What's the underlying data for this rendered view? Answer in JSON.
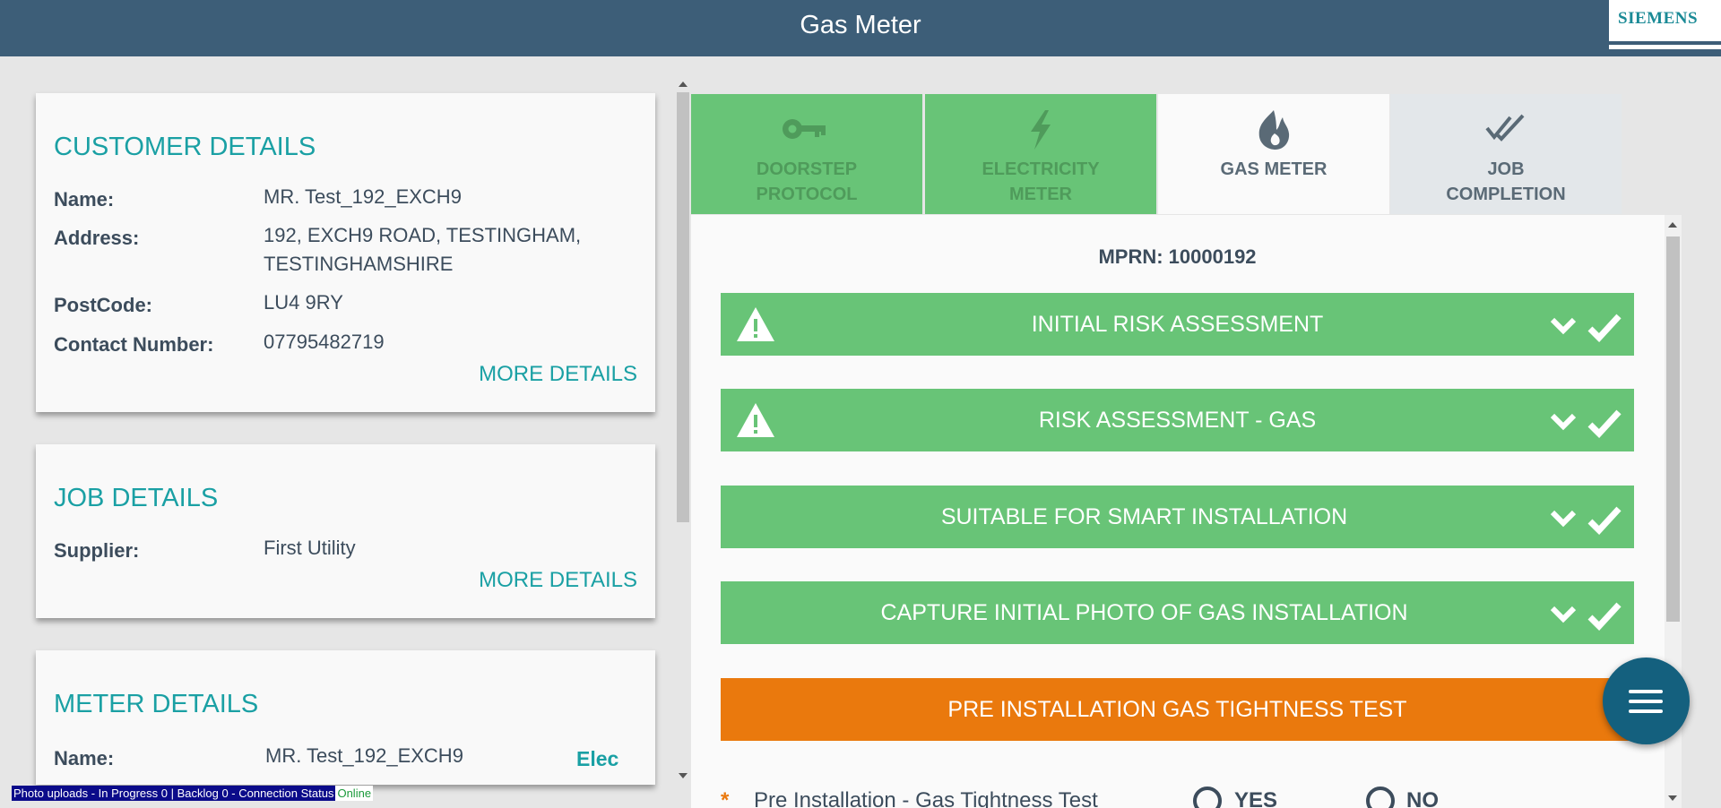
{
  "header": {
    "title": "Gas Meter",
    "logo": "SIEMENS"
  },
  "customer": {
    "title": "CUSTOMER DETAILS",
    "rows": [
      {
        "label": "Name:",
        "value": "MR. Test_192_EXCH9"
      },
      {
        "label": "Address:",
        "value": "192, EXCH9 ROAD, TESTINGHAM, TESTINGHAMSHIRE"
      },
      {
        "label": "PostCode:",
        "value": "LU4 9RY"
      },
      {
        "label": "Contact Number:",
        "value": "07795482719"
      }
    ],
    "more": "MORE DETAILS"
  },
  "job": {
    "title": "JOB DETAILS",
    "rows": [
      {
        "label": "Supplier:",
        "value": "First Utility"
      }
    ],
    "more": "MORE DETAILS"
  },
  "meter": {
    "title": "METER DETAILS",
    "rows": [
      {
        "label": "Name:",
        "value": "MR. Test_192_EXCH9"
      }
    ],
    "tag": "Elec"
  },
  "tabs": [
    {
      "line1": "DOORSTEP",
      "line2": "PROTOCOL",
      "icon": "key-icon",
      "state": "complete"
    },
    {
      "line1": "ELECTRICITY",
      "line2": "METER",
      "icon": "lightning-icon",
      "state": "complete"
    },
    {
      "line1": "GAS METER",
      "line2": "",
      "icon": "flame-icon",
      "state": "active"
    },
    {
      "line1": "JOB",
      "line2": "COMPLETION",
      "icon": "double-check-icon",
      "state": "pending"
    }
  ],
  "mprn": "MPRN: 10000192",
  "sections": [
    {
      "title": "INITIAL RISK ASSESSMENT",
      "status": "complete",
      "warning": true
    },
    {
      "title": "RISK ASSESSMENT - GAS",
      "status": "complete",
      "warning": true
    },
    {
      "title": "SUITABLE FOR SMART INSTALLATION",
      "status": "complete",
      "warning": false
    },
    {
      "title": "CAPTURE INITIAL PHOTO OF GAS INSTALLATION",
      "status": "complete",
      "warning": false
    },
    {
      "title": "PRE INSTALLATION GAS TIGHTNESS TEST",
      "status": "in-progress",
      "warning": false
    }
  ],
  "question": {
    "required_mark": "*",
    "text": "Pre Installation - Gas Tightness Test",
    "options": [
      "YES",
      "NO"
    ]
  },
  "status_bar": {
    "text": "Photo uploads - In Progress 0 | Backlog 0 - Connection Status",
    "connection": "Online"
  },
  "colors": {
    "header": "#3d5e78",
    "complete": "#68c477",
    "in_progress": "#ea790d",
    "accent": "#1aa0a4",
    "fab": "#14607e"
  }
}
